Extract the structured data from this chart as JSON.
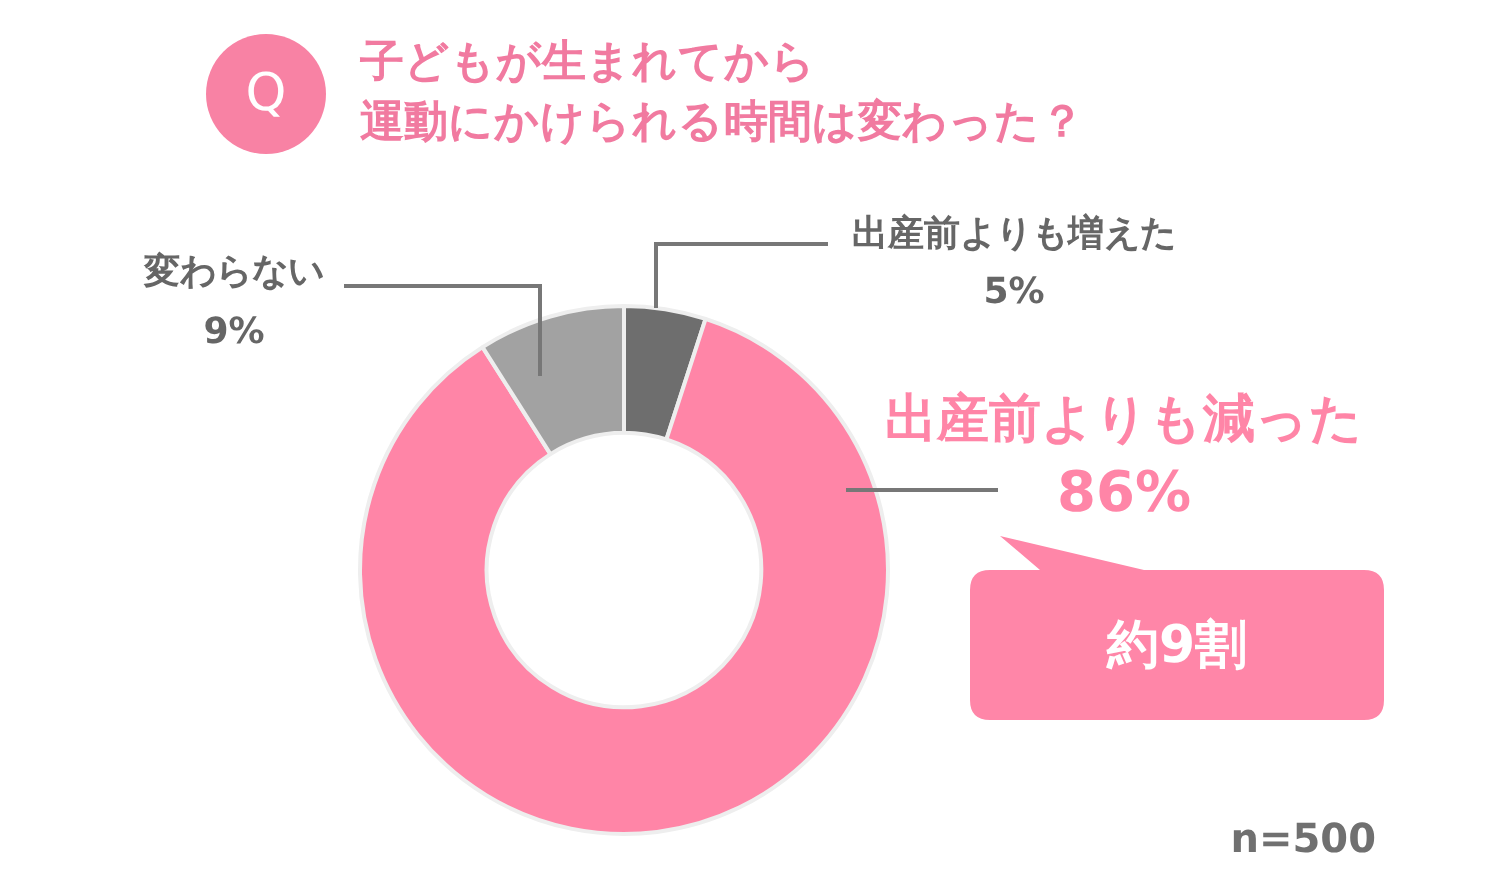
{
  "chart_data": {
    "type": "donut",
    "title": "子どもが生まれてから運動にかけられる時間は変わった？",
    "categories": [
      "出産前よりも増えた",
      "出産前よりも減った",
      "変わらない"
    ],
    "values": [
      5,
      86,
      9
    ],
    "colors": [
      "#6e6e6e",
      "#ff85a7",
      "#a2a2a2"
    ],
    "value_labels": [
      "5%",
      "86%",
      "9%"
    ],
    "legend": false,
    "annotations": [
      "Q",
      "約9割",
      "n=500"
    ]
  }
}
